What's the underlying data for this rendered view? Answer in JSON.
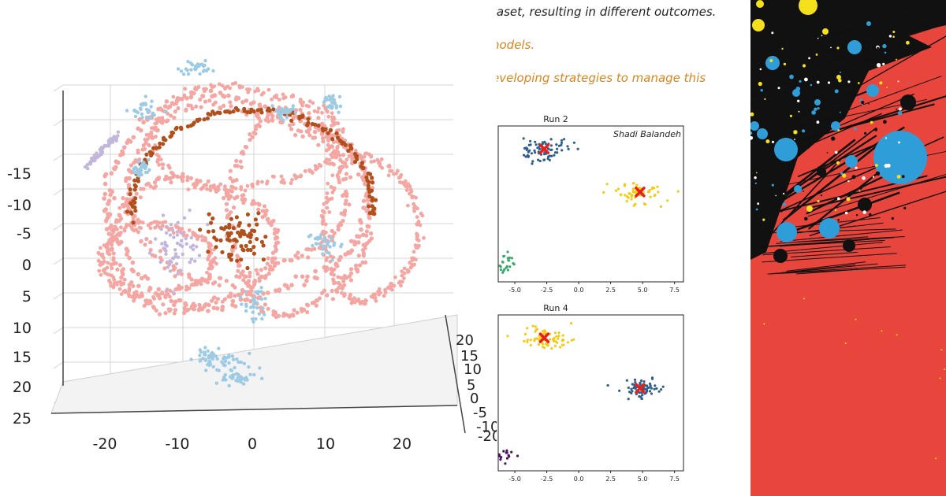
{
  "left_plot": {
    "y_ticks": [
      "-15",
      "-10",
      "-5",
      "0",
      "5",
      "10",
      "15",
      "20",
      "25"
    ],
    "x_ticks": [
      "-20",
      "-10",
      "0",
      "10",
      "20"
    ],
    "z_ticks": [
      "20",
      "15",
      "10",
      "5",
      "0",
      "-5",
      "-10",
      "-20"
    ],
    "colors": {
      "pink": "#f4a6a2",
      "brown": "#b0501c",
      "lightblue": "#9ccbe3",
      "lavender": "#c3b6dc"
    }
  },
  "text_lines": [
    {
      "text": "taset, resulting in different outcomes.",
      "color": "black"
    },
    {
      "text": "nodels.",
      "color": "orange"
    },
    {
      "text": "eveloping strategies to manage this",
      "color": "orange"
    }
  ],
  "chart_data": [
    {
      "type": "scatter",
      "title": "Run 2",
      "annotation": "Shadi Balandeh",
      "x_ticks": [
        "-5.0",
        "-2.5",
        "0.0",
        "2.5",
        "5.0",
        "7.5"
      ],
      "xlim": [
        -6.3,
        8.2
      ],
      "ylim": [
        -7,
        10
      ],
      "series": [
        {
          "color": "#2f5f8a",
          "center": [
            -2.7,
            7.5
          ],
          "spread": [
            0.9,
            0.6
          ],
          "count": 70
        },
        {
          "color": "#f1cc10",
          "center": [
            4.8,
            2.8
          ],
          "spread": [
            0.9,
            0.6
          ],
          "count": 60
        },
        {
          "color": "#3aa86b",
          "center": [
            -6.0,
            -5.0
          ],
          "spread": [
            0.6,
            0.7
          ],
          "count": 30
        }
      ],
      "centroids": [
        [
          -2.7,
          7.5
        ],
        [
          4.8,
          2.8
        ]
      ],
      "centroid_color": "#e8201c"
    },
    {
      "type": "scatter",
      "title": "Run 4",
      "x_ticks": [
        "-5.0",
        "-2.5",
        "0.0",
        "2.5",
        "5.0",
        "7.5"
      ],
      "xlim": [
        -6.3,
        8.2
      ],
      "ylim": [
        -7,
        10
      ],
      "series": [
        {
          "color": "#f1cc10",
          "center": [
            -2.7,
            7.5
          ],
          "spread": [
            0.9,
            0.6
          ],
          "count": 70
        },
        {
          "color": "#2f5f8a",
          "center": [
            4.8,
            2.0
          ],
          "spread": [
            0.9,
            0.5
          ],
          "count": 70
        },
        {
          "color": "#4b1458",
          "center": [
            -6.0,
            -5.5
          ],
          "spread": [
            0.6,
            0.5
          ],
          "count": 28
        }
      ],
      "centroids": [
        [
          -2.7,
          7.5
        ],
        [
          4.8,
          2.0
        ]
      ],
      "centroid_color": "#e8201c"
    }
  ],
  "art_colors": {
    "background": "#e8453c",
    "black": "#111111",
    "blue": "#2f9ed8",
    "yellow": "#f6e01c"
  }
}
